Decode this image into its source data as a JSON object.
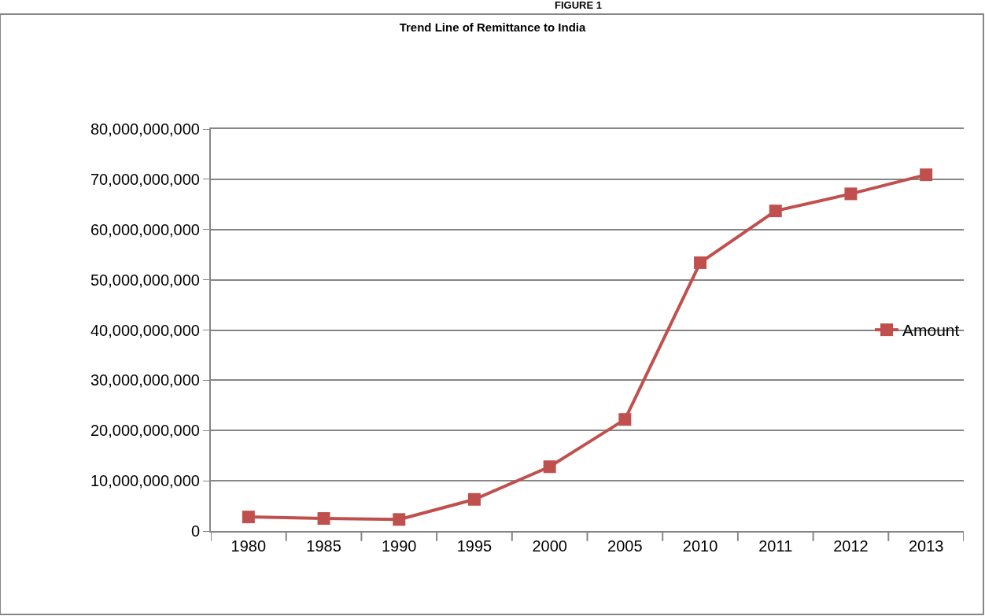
{
  "chart_data": {
    "type": "line",
    "title": "Trend Line of Remittance to India",
    "annotations": [
      "FIGURE 1"
    ],
    "categories": [
      "1980",
      "1985",
      "1990",
      "1995",
      "2000",
      "2005",
      "2010",
      "2011",
      "2012",
      "2013"
    ],
    "series": [
      {
        "name": "Amount",
        "color": "#c0504d",
        "values": [
          2800000000,
          2500000000,
          2300000000,
          6300000000,
          12800000000,
          22200000000,
          53400000000,
          63700000000,
          67100000000,
          70900000000
        ]
      }
    ],
    "ylim": [
      0,
      80000000000
    ],
    "yticks": [
      {
        "value": 0,
        "label": "0"
      },
      {
        "value": 10000000000,
        "label": "10,000,000,000"
      },
      {
        "value": 20000000000,
        "label": "20,000,000,000"
      },
      {
        "value": 30000000000,
        "label": "30,000,000,000"
      },
      {
        "value": 40000000000,
        "label": "40,000,000,000"
      },
      {
        "value": 50000000000,
        "label": "50,000,000,000"
      },
      {
        "value": 60000000000,
        "label": "60,000,000,000"
      },
      {
        "value": 70000000000,
        "label": "70,000,000,000"
      },
      {
        "value": 80000000000,
        "label": "80,000,000,000"
      }
    ],
    "grid": "y",
    "legend": "right",
    "marker": "square",
    "line_style": "solid"
  }
}
